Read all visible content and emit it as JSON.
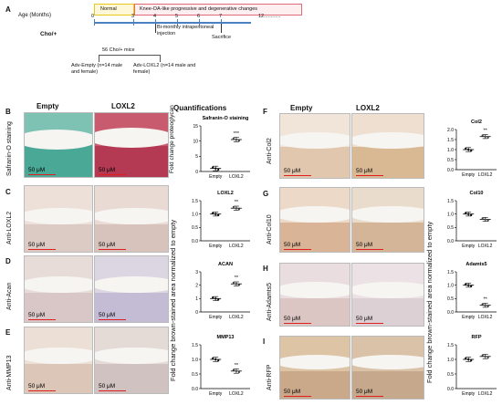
{
  "panel_a": {
    "letter": "A",
    "age_label": "Age (Months)",
    "strain": "Cho/+",
    "normal_label": "Normal",
    "oa_label": "Knee-OA-like progressive and degenerative changes",
    "ticks": [
      "0",
      "3",
      "4",
      "5",
      "6",
      "7",
      "12............"
    ],
    "injection_label": "Bi-monthly intraperitoneal injection",
    "sacrifice_label": "Sacrifice",
    "mice_label": "56 Cho/+ mice",
    "adv_empty_label": "Adv-Empty (n=14 male and female)",
    "adv_loxl2_label": "Adv-LOXL2 (n=14 male and female)",
    "colors": {
      "normal_box": "#e8c818",
      "oa_box": "#e06a7a",
      "timeline": "#4a7fc0"
    }
  },
  "left_col": {
    "empty": "Empty",
    "loxl2": "LOXL2",
    "quant": "Quantifications"
  },
  "right_col": {
    "empty": "Empty",
    "loxl2": "LOXL2"
  },
  "scale_bar": "50 μM",
  "rows_left": [
    {
      "letter": "B",
      "stain": "Safranin-O staining"
    },
    {
      "letter": "C",
      "stain": "Anti-LOXL2"
    },
    {
      "letter": "D",
      "stain": "Anti-Acan"
    },
    {
      "letter": "E",
      "stain": "Anti-MMP13"
    }
  ],
  "rows_right": [
    {
      "letter": "F",
      "stain": "Anti-Col2"
    },
    {
      "letter": "G",
      "stain": "Anti-Col10"
    },
    {
      "letter": "H",
      "stain": "Anti-Adamts5"
    },
    {
      "letter": "I",
      "stain": "Anti-RFP"
    }
  ],
  "ylabel_left_b": "Fold change proteoglycan",
  "ylabel_left": "Fold change brown-stained area normalized to empty",
  "ylabel_right": "Fold change brown-stained area normalized to empty",
  "chart_data": [
    {
      "type": "scatter",
      "title": "Safranin-O staining",
      "categories": [
        "Empty",
        "LOXL2"
      ],
      "means": [
        1.0,
        10.5
      ],
      "ylim": [
        0,
        15
      ],
      "yticks": [
        "0",
        "5",
        "10",
        "15"
      ],
      "significance": "***"
    },
    {
      "type": "scatter",
      "title": "LOXL2",
      "categories": [
        "Empty",
        "LOXL2"
      ],
      "means": [
        1.0,
        1.22
      ],
      "ylim": [
        0,
        1.5
      ],
      "yticks": [
        "0.0",
        "0.5",
        "1.0",
        "1.5"
      ],
      "significance": "**"
    },
    {
      "type": "scatter",
      "title": "ACAN",
      "categories": [
        "Empty",
        "LOXL2"
      ],
      "means": [
        1.0,
        2.1
      ],
      "ylim": [
        0,
        3
      ],
      "yticks": [
        "0",
        "1",
        "2",
        "3"
      ],
      "significance": "**"
    },
    {
      "type": "scatter",
      "title": "MMP13",
      "categories": [
        "Empty",
        "LOXL2"
      ],
      "means": [
        1.0,
        0.6
      ],
      "ylim": [
        0,
        1.5
      ],
      "yticks": [
        "0.0",
        "0.5",
        "1.0",
        "1.5"
      ],
      "significance": "**"
    },
    {
      "type": "scatter",
      "title": "Col2",
      "categories": [
        "Empty",
        "LOXL2"
      ],
      "means": [
        1.0,
        1.65
      ],
      "ylim": [
        0,
        2
      ],
      "yticks": [
        "0.0",
        "0.5",
        "1.0",
        "1.5",
        "2.0"
      ],
      "significance": "**"
    },
    {
      "type": "scatter",
      "title": "Col10",
      "categories": [
        "Empty",
        "LOXL2"
      ],
      "means": [
        1.0,
        0.8
      ],
      "ylim": [
        0,
        1.5
      ],
      "yticks": [
        "0.0",
        "0.5",
        "1.0",
        "1.5"
      ],
      "significance": ""
    },
    {
      "type": "scatter",
      "title": "Adamts5",
      "categories": [
        "Empty",
        "LOXL2"
      ],
      "means": [
        1.0,
        0.25
      ],
      "ylim": [
        0,
        1.5
      ],
      "yticks": [
        "0.0",
        "0.5",
        "1.0",
        "1.5"
      ],
      "significance": "**"
    },
    {
      "type": "scatter",
      "title": "RFP",
      "categories": [
        "Empty",
        "LOXL2"
      ],
      "means": [
        1.0,
        1.1
      ],
      "ylim": [
        0,
        1.5
      ],
      "yticks": [
        "0.0",
        "0.5",
        "1.0",
        "1.5"
      ],
      "significance": ""
    }
  ]
}
